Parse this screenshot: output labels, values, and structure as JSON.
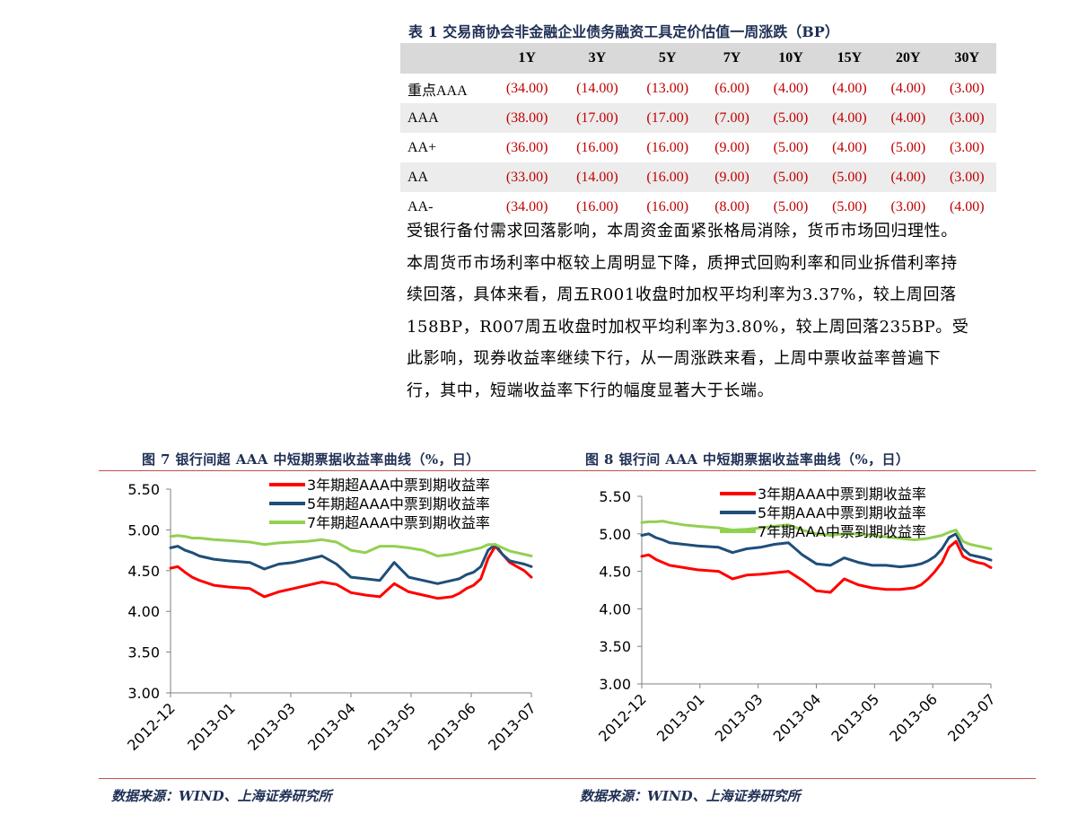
{
  "table": {
    "title": "表 1 交易商协会非金融企业债务融资工具定价估值一周涨跌（BP）",
    "headers": [
      "",
      "1Y",
      "3Y",
      "5Y",
      "7Y",
      "10Y",
      "15Y",
      "20Y",
      "30Y"
    ],
    "rows": [
      {
        "label": "重点AAA",
        "values": [
          "(34.00)",
          "(14.00)",
          "(13.00)",
          "(6.00)",
          "(4.00)",
          "(4.00)",
          "(4.00)",
          "(3.00)"
        ]
      },
      {
        "label": "AAA",
        "values": [
          "(38.00)",
          "(17.00)",
          "(17.00)",
          "(7.00)",
          "(5.00)",
          "(4.00)",
          "(4.00)",
          "(3.00)"
        ]
      },
      {
        "label": "AA+",
        "values": [
          "(36.00)",
          "(16.00)",
          "(16.00)",
          "(9.00)",
          "(5.00)",
          "(4.00)",
          "(5.00)",
          "(3.00)"
        ]
      },
      {
        "label": "AA",
        "values": [
          "(33.00)",
          "(14.00)",
          "(16.00)",
          "(9.00)",
          "(5.00)",
          "(5.00)",
          "(4.00)",
          "(3.00)"
        ]
      },
      {
        "label": "AA-",
        "values": [
          "(34.00)",
          "(16.00)",
          "(16.00)",
          "(8.00)",
          "(5.00)",
          "(5.00)",
          "(3.00)",
          "(4.00)"
        ]
      }
    ]
  },
  "paragraph": "受银行备付需求回落影响，本周资金面紧张格局消除，货币市场回归理性。本周货币市场利率中枢较上周明显下降，质押式回购利率和同业拆借利率持续回落，具体来看，周五R001收盘时加权平均利率为3.37%，较上周回落158BP，R007周五收盘时加权平均利率为3.80%，较上周回落235BP。受此影响，现券收益率继续下行，从一周涨跌来看，上周中票收益率普遍下行，其中，短端收益率下行的幅度显著大于长端。",
  "figures": [
    {
      "title": "图 7 银行间超 AAA 中短期票据收益率曲线（%，日）",
      "source": "数据来源：WIND、上海证券研究所"
    },
    {
      "title": "图 8 银行间 AAA 中短期票据收益率曲线（%，日）",
      "source": "数据来源：WIND、上海证券研究所"
    }
  ],
  "chart_data": [
    {
      "type": "line",
      "ylim": [
        3.0,
        5.5
      ],
      "yticks": [
        "5.50",
        "5.00",
        "4.50",
        "4.00",
        "3.50",
        "3.00"
      ],
      "xticks": [
        "2012-12",
        "2013-01",
        "2013-03",
        "2013-04",
        "2013-05",
        "2013-06",
        "2013-07"
      ],
      "grid": false,
      "legend_position": "top",
      "series": [
        {
          "name": "3年期超AAA中票到期收益率",
          "color": "#ff0000",
          "x": [
            0,
            2,
            4,
            6,
            8,
            12,
            16,
            22,
            26,
            30,
            34,
            38,
            42,
            46,
            50,
            54,
            58,
            62,
            66,
            70,
            74,
            78,
            80,
            82,
            84,
            86,
            88,
            90,
            92,
            94,
            96,
            98,
            100
          ],
          "values": [
            4.53,
            4.55,
            4.48,
            4.42,
            4.38,
            4.32,
            4.3,
            4.28,
            4.18,
            4.24,
            4.28,
            4.32,
            4.36,
            4.33,
            4.23,
            4.2,
            4.18,
            4.34,
            4.24,
            4.2,
            4.16,
            4.18,
            4.22,
            4.28,
            4.32,
            4.4,
            4.65,
            4.8,
            4.7,
            4.6,
            4.55,
            4.5,
            4.42
          ]
        },
        {
          "name": "5年期超AAA中票到期收益率",
          "color": "#1f4e79",
          "x": [
            0,
            2,
            4,
            6,
            8,
            12,
            16,
            22,
            26,
            30,
            34,
            38,
            42,
            46,
            50,
            54,
            58,
            62,
            66,
            70,
            74,
            78,
            80,
            82,
            84,
            86,
            88,
            90,
            92,
            94,
            96,
            98,
            100
          ],
          "values": [
            4.78,
            4.8,
            4.75,
            4.72,
            4.68,
            4.64,
            4.62,
            4.6,
            4.52,
            4.58,
            4.6,
            4.64,
            4.68,
            4.58,
            4.42,
            4.4,
            4.38,
            4.6,
            4.42,
            4.38,
            4.34,
            4.38,
            4.4,
            4.45,
            4.48,
            4.55,
            4.75,
            4.82,
            4.7,
            4.62,
            4.6,
            4.58,
            4.55
          ]
        },
        {
          "name": "7年期超AAA中票到期收益率",
          "color": "#92d050",
          "x": [
            0,
            2,
            4,
            6,
            8,
            12,
            16,
            22,
            26,
            30,
            34,
            38,
            42,
            46,
            50,
            54,
            58,
            62,
            66,
            70,
            74,
            78,
            80,
            82,
            84,
            86,
            88,
            90,
            92,
            94,
            96,
            98,
            100
          ],
          "values": [
            4.92,
            4.93,
            4.92,
            4.9,
            4.9,
            4.88,
            4.87,
            4.85,
            4.82,
            4.84,
            4.85,
            4.86,
            4.88,
            4.85,
            4.75,
            4.72,
            4.8,
            4.8,
            4.78,
            4.75,
            4.68,
            4.7,
            4.72,
            4.74,
            4.76,
            4.78,
            4.82,
            4.82,
            4.78,
            4.74,
            4.72,
            4.7,
            4.68
          ]
        }
      ]
    },
    {
      "type": "line",
      "ylim": [
        3.0,
        5.5
      ],
      "yticks": [
        "5.50",
        "5.00",
        "4.50",
        "4.00",
        "3.50",
        "3.00"
      ],
      "xticks": [
        "2012-12",
        "2013-01",
        "2013-03",
        "2013-04",
        "2013-05",
        "2013-06",
        "2013-07"
      ],
      "grid": false,
      "legend_position": "top",
      "series": [
        {
          "name": "3年期AAA中票到期收益率",
          "color": "#ff0000",
          "x": [
            0,
            2,
            4,
            6,
            8,
            12,
            16,
            22,
            26,
            30,
            34,
            38,
            42,
            46,
            50,
            54,
            58,
            62,
            66,
            70,
            74,
            78,
            80,
            82,
            84,
            86,
            88,
            90,
            92,
            94,
            96,
            98,
            100
          ],
          "values": [
            4.7,
            4.72,
            4.66,
            4.62,
            4.58,
            4.55,
            4.52,
            4.5,
            4.4,
            4.45,
            4.46,
            4.48,
            4.5,
            4.38,
            4.24,
            4.22,
            4.4,
            4.32,
            4.28,
            4.26,
            4.26,
            4.28,
            4.32,
            4.4,
            4.5,
            4.62,
            4.82,
            4.9,
            4.7,
            4.65,
            4.62,
            4.6,
            4.55
          ]
        },
        {
          "name": "5年期AAA中票到期收益率",
          "color": "#1f4e79",
          "x": [
            0,
            2,
            4,
            6,
            8,
            12,
            16,
            22,
            26,
            30,
            34,
            38,
            42,
            46,
            50,
            54,
            58,
            62,
            66,
            70,
            74,
            78,
            80,
            82,
            84,
            86,
            88,
            90,
            92,
            94,
            96,
            98,
            100
          ],
          "values": [
            4.98,
            5.0,
            4.95,
            4.92,
            4.88,
            4.86,
            4.84,
            4.82,
            4.75,
            4.8,
            4.82,
            4.86,
            4.88,
            4.72,
            4.6,
            4.58,
            4.68,
            4.62,
            4.58,
            4.58,
            4.56,
            4.58,
            4.6,
            4.64,
            4.7,
            4.8,
            4.95,
            5.0,
            4.8,
            4.72,
            4.7,
            4.68,
            4.65
          ]
        },
        {
          "name": "7年期AAA中票到期收益率",
          "color": "#92d050",
          "x": [
            0,
            2,
            4,
            6,
            8,
            12,
            16,
            22,
            26,
            30,
            34,
            38,
            42,
            46,
            50,
            54,
            58,
            62,
            66,
            70,
            74,
            78,
            80,
            82,
            84,
            86,
            88,
            90,
            92,
            94,
            96,
            98,
            100
          ],
          "values": [
            5.15,
            5.16,
            5.16,
            5.17,
            5.15,
            5.12,
            5.1,
            5.08,
            5.05,
            5.06,
            5.08,
            5.1,
            5.12,
            5.05,
            5.0,
            4.98,
            5.0,
            5.0,
            4.98,
            4.96,
            4.94,
            4.92,
            4.93,
            4.94,
            4.96,
            4.98,
            5.02,
            5.05,
            4.9,
            4.86,
            4.84,
            4.82,
            4.8
          ]
        }
      ]
    }
  ]
}
